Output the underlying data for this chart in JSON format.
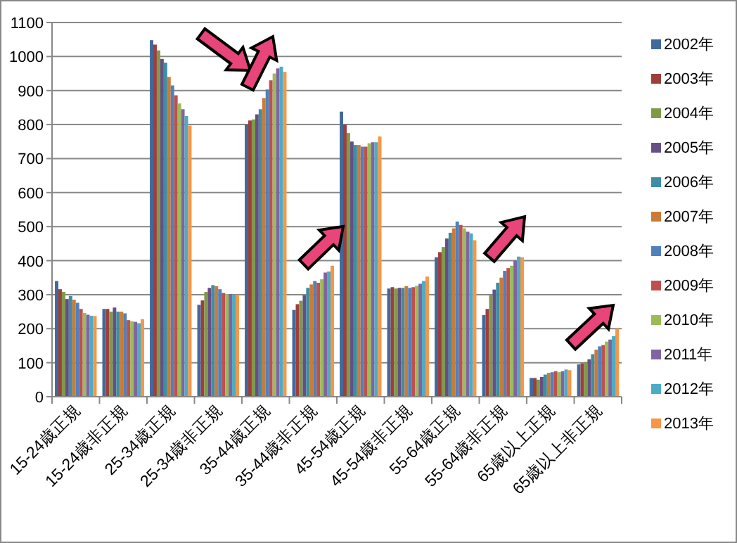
{
  "chart_data": {
    "type": "bar",
    "categories": [
      "15-24歳正規",
      "15-24歳非正規",
      "25-34歳正規",
      "25-34歳非正規",
      "35-44歳正規",
      "35-44歳非正規",
      "45-54歳正規",
      "45-54歳非正規",
      "55-64歳正規",
      "55-64歳非正規",
      "65歳以上正規",
      "65歳以上非正規"
    ],
    "ylim": [
      0,
      1100
    ],
    "yticks": [
      0,
      100,
      200,
      300,
      400,
      500,
      600,
      700,
      800,
      900,
      1000,
      1100
    ],
    "grid": "y",
    "legend": "right",
    "series": [
      {
        "name": "2002年",
        "color": "#40699c",
        "values": [
          340,
          258,
          1048,
          270,
          800,
          255,
          838,
          318,
          410,
          240,
          55,
          95
        ]
      },
      {
        "name": "2003年",
        "color": "#9e3f3c",
        "values": [
          316,
          258,
          1035,
          283,
          812,
          272,
          800,
          322,
          425,
          258,
          55,
          98
        ]
      },
      {
        "name": "2004年",
        "color": "#7e9a47",
        "values": [
          308,
          250,
          1018,
          308,
          815,
          282,
          775,
          318,
          440,
          300,
          50,
          102
        ]
      },
      {
        "name": "2005年",
        "color": "#664f84",
        "values": [
          287,
          262,
          993,
          320,
          830,
          298,
          750,
          320,
          465,
          315,
          58,
          110
        ]
      },
      {
        "name": "2006年",
        "color": "#3c8ea5",
        "values": [
          296,
          250,
          982,
          328,
          845,
          320,
          740,
          320,
          482,
          335,
          65,
          125
        ]
      },
      {
        "name": "2007年",
        "color": "#cb7b35",
        "values": [
          285,
          250,
          940,
          325,
          878,
          330,
          740,
          325,
          495,
          350,
          70,
          138
        ]
      },
      {
        "name": "2008年",
        "color": "#4f81bd",
        "values": [
          276,
          245,
          915,
          316,
          903,
          340,
          735,
          320,
          515,
          370,
          72,
          148
        ]
      },
      {
        "name": "2009年",
        "color": "#c0504d",
        "values": [
          258,
          225,
          886,
          305,
          930,
          335,
          735,
          322,
          505,
          378,
          75,
          152
        ]
      },
      {
        "name": "2010年",
        "color": "#9bbb59",
        "values": [
          246,
          222,
          862,
          302,
          950,
          345,
          745,
          326,
          495,
          385,
          72,
          162
        ]
      },
      {
        "name": "2011年",
        "color": "#8064a2",
        "values": [
          241,
          220,
          845,
          302,
          965,
          365,
          748,
          332,
          485,
          400,
          75,
          168
        ]
      },
      {
        "name": "2012年",
        "color": "#4bacc6",
        "values": [
          238,
          216,
          825,
          300,
          970,
          368,
          748,
          340,
          480,
          412,
          80,
          178
        ]
      },
      {
        "name": "2013年",
        "color": "#f79646",
        "values": [
          237,
          228,
          797,
          300,
          955,
          385,
          765,
          353,
          460,
          410,
          78,
          200
        ]
      }
    ]
  }
}
